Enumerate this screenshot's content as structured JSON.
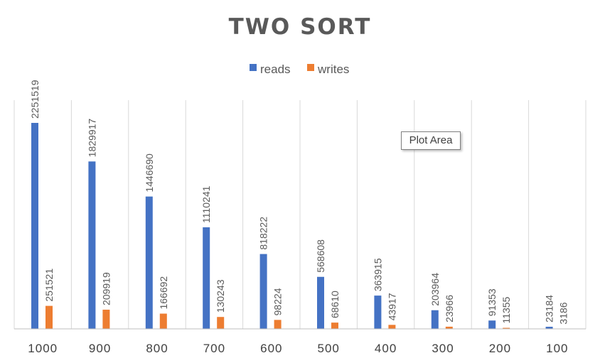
{
  "chart_data": {
    "type": "bar",
    "title": "TWO SORT",
    "categories": [
      "1000",
      "900",
      "800",
      "700",
      "600",
      "500",
      "400",
      "300",
      "200",
      "100"
    ],
    "series": [
      {
        "name": "reads",
        "values": [
          2251519,
          1829917,
          1446690,
          1110241,
          818222,
          568608,
          363915,
          203964,
          91353,
          23184
        ]
      },
      {
        "name": "writes",
        "values": [
          251521,
          209919,
          166692,
          130243,
          98224,
          68610,
          43917,
          23966,
          11355,
          3186
        ]
      }
    ],
    "ylim": [
      0,
      2500000
    ],
    "legend_position": "top",
    "grid": "vertical",
    "colors": {
      "reads": "#4472c4",
      "writes": "#ed7d31"
    },
    "data_labels": true
  },
  "tooltip": {
    "text": "Plot Area"
  }
}
